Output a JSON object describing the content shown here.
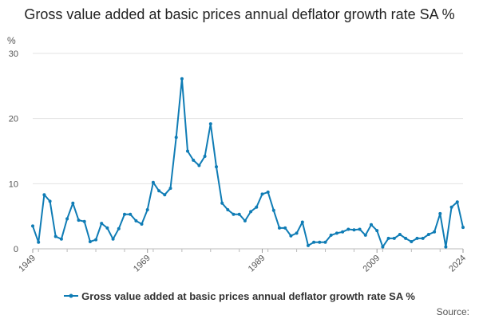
{
  "chart_data": {
    "type": "line",
    "title": "Gross value added at basic prices annual deflator growth rate SA %",
    "ylabel": "%",
    "xlabel": "",
    "ylim": [
      0,
      30
    ],
    "yticks": [
      0,
      10,
      20,
      30
    ],
    "xlim": [
      1949,
      2024
    ],
    "xtick_labels": [
      "1949",
      "1969",
      "1989",
      "2009",
      "2024"
    ],
    "grid": true,
    "legend_position": "bottom",
    "color": "#0f7cb5",
    "source_label": "Source:",
    "series": [
      {
        "name": "Gross value added at basic prices annual deflator growth rate SA %",
        "x": [
          1949,
          1950,
          1951,
          1952,
          1953,
          1954,
          1955,
          1956,
          1957,
          1958,
          1959,
          1960,
          1961,
          1962,
          1963,
          1964,
          1965,
          1966,
          1967,
          1968,
          1969,
          1970,
          1971,
          1972,
          1973,
          1974,
          1975,
          1976,
          1977,
          1978,
          1979,
          1980,
          1981,
          1982,
          1983,
          1984,
          1985,
          1986,
          1987,
          1988,
          1989,
          1990,
          1991,
          1992,
          1993,
          1994,
          1995,
          1996,
          1997,
          1998,
          1999,
          2000,
          2001,
          2002,
          2003,
          2004,
          2005,
          2006,
          2007,
          2008,
          2009,
          2010,
          2011,
          2012,
          2013,
          2014,
          2015,
          2016,
          2017,
          2018,
          2019,
          2020,
          2021,
          2022,
          2023,
          2024
        ],
        "values": [
          3.5,
          1.0,
          8.3,
          7.3,
          1.9,
          1.5,
          4.6,
          7.0,
          4.4,
          4.2,
          1.1,
          1.4,
          3.9,
          3.2,
          1.5,
          3.1,
          5.3,
          5.3,
          4.3,
          3.8,
          6.0,
          10.2,
          8.9,
          8.3,
          9.3,
          17.1,
          26.1,
          15.0,
          13.6,
          12.8,
          14.2,
          19.2,
          12.6,
          7.0,
          6.0,
          5.3,
          5.3,
          4.3,
          5.7,
          6.4,
          8.4,
          8.7,
          5.9,
          3.2,
          3.2,
          2.0,
          2.4,
          4.1,
          0.5,
          1.0,
          1.0,
          1.0,
          2.1,
          2.4,
          2.6,
          3.0,
          2.9,
          3.0,
          2.1,
          3.7,
          2.8,
          0.3,
          1.6,
          1.6,
          2.2,
          1.6,
          1.1,
          1.6,
          1.6,
          2.2,
          2.6,
          5.4,
          0.3,
          6.4,
          7.2,
          3.3
        ]
      }
    ]
  }
}
